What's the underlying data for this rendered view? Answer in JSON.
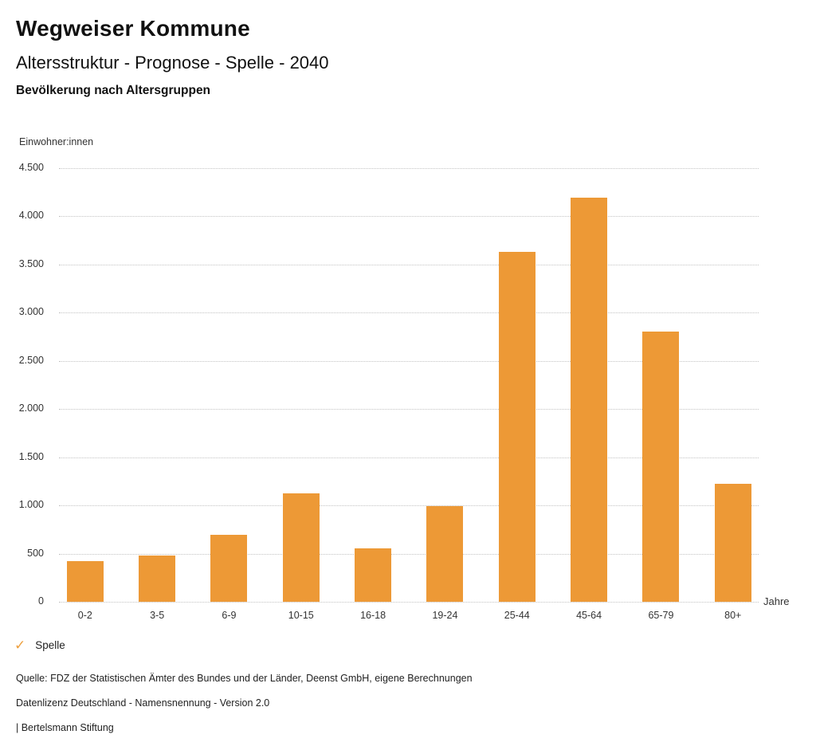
{
  "header": {
    "title": "Wegweiser Kommune",
    "subtitle": "Altersstruktur - Prognose - Spelle - 2040",
    "section_title": "Bevölkerung nach Altersgruppen"
  },
  "chart_data": {
    "type": "bar",
    "title": "Bevölkerung nach Altersgruppen",
    "ylabel": "Einwohner:innen",
    "xlabel": "Jahre",
    "categories": [
      "0-2",
      "3-5",
      "6-9",
      "10-15",
      "16-18",
      "19-24",
      "25-44",
      "45-64",
      "65-79",
      "80+"
    ],
    "series": [
      {
        "name": "Spelle",
        "values": [
          425,
          480,
          695,
          1120,
          555,
          990,
          3630,
          4190,
          2800,
          1220
        ]
      }
    ],
    "ylim": [
      0,
      4500
    ],
    "ytick_step": 500,
    "yticks": [
      {
        "value": 4500,
        "label": "4.500"
      },
      {
        "value": 4000,
        "label": "4.000"
      },
      {
        "value": 3500,
        "label": "3.500"
      },
      {
        "value": 3000,
        "label": "3.000"
      },
      {
        "value": 2500,
        "label": "2.500"
      },
      {
        "value": 2000,
        "label": "2.000"
      },
      {
        "value": 1500,
        "label": "1.500"
      },
      {
        "value": 1000,
        "label": "1.000"
      },
      {
        "value": 500,
        "label": "500"
      },
      {
        "value": 0,
        "label": "0"
      }
    ],
    "grid": "horizontal-dotted",
    "legend_position": "bottom-left",
    "bar_color": "#ED9936"
  },
  "legend": {
    "items": [
      {
        "label": "Spelle",
        "marker": "check-icon",
        "color": "#EDA03F",
        "active": true,
        "check_glyph": "✓"
      }
    ]
  },
  "footer": {
    "source": "Quelle: FDZ der Statistischen Ämter des Bundes und der Länder, Deenst GmbH, eigene Berechnungen",
    "license": "Datenlizenz Deutschland - Namensnennung - Version 2.0",
    "attribution": "| Bertelsmann Stiftung"
  },
  "colors": {
    "bar": "#ED9936",
    "grid": "#c3c3c3",
    "title_text": "#111111",
    "axis_text": "#333333",
    "footer_text": "#222222"
  }
}
